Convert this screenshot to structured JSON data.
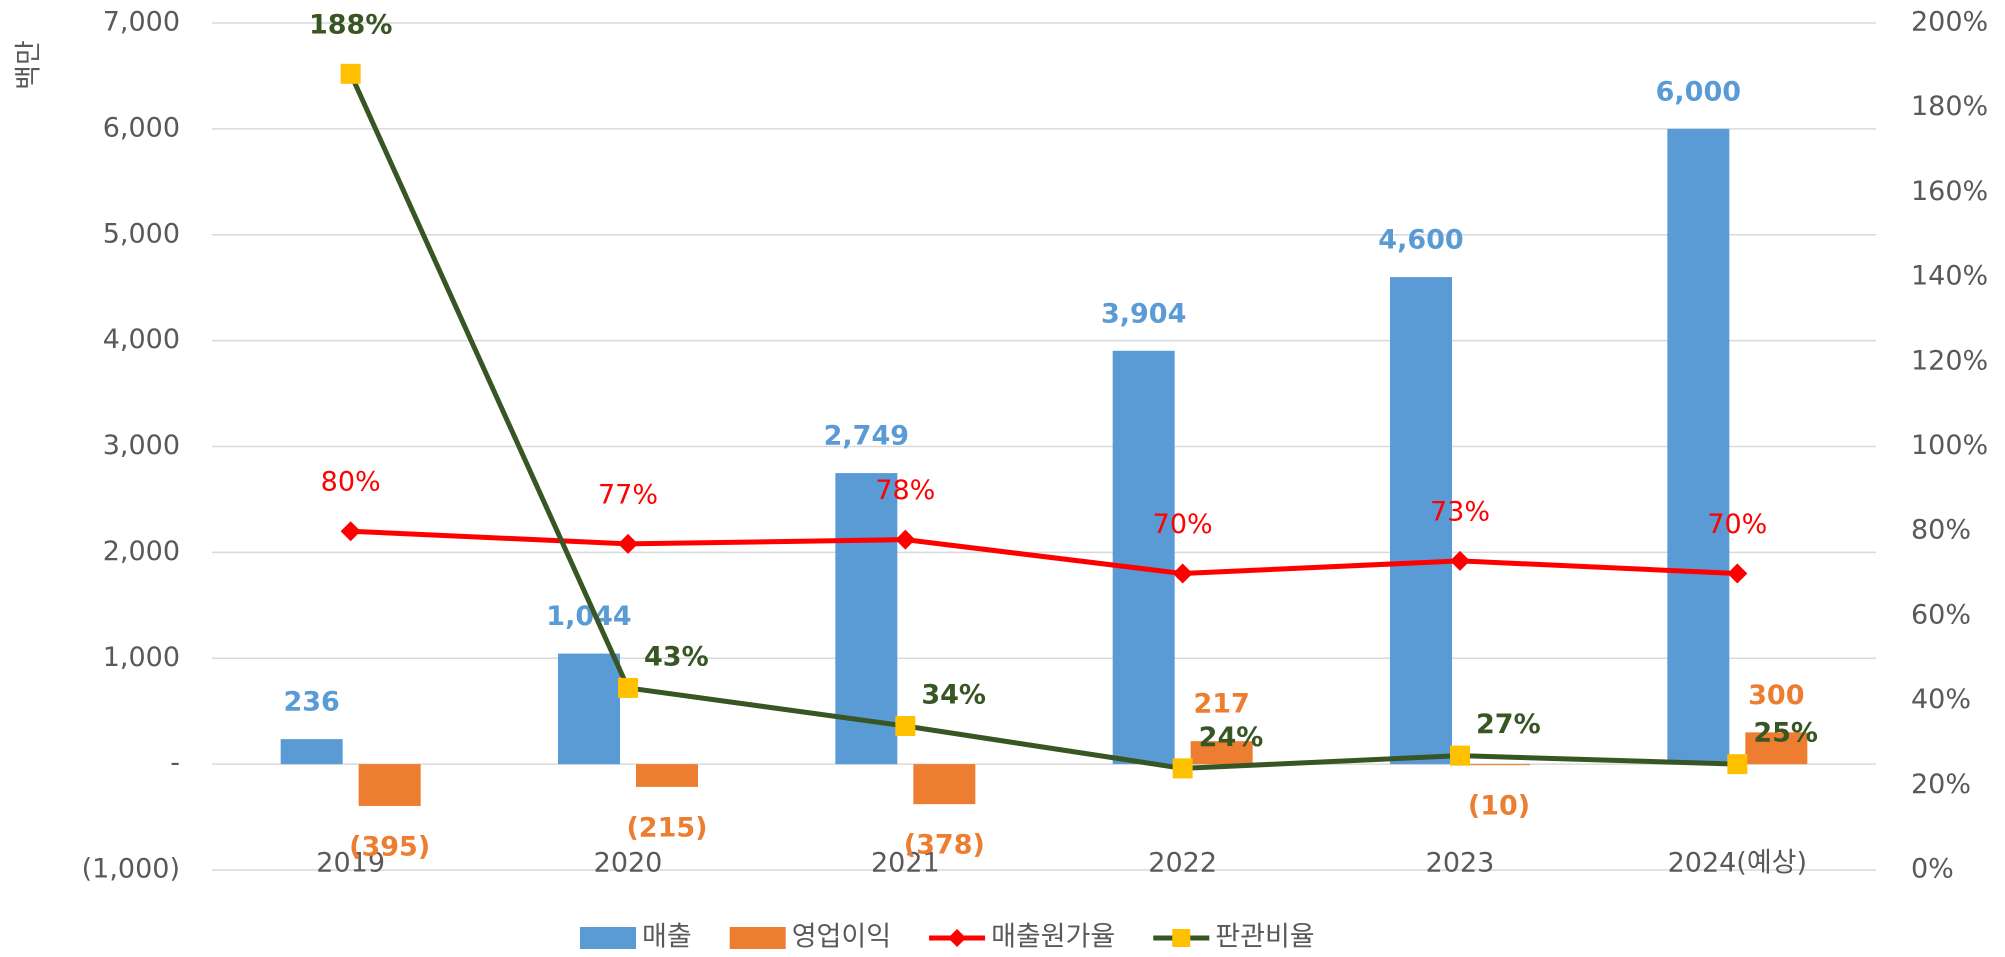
{
  "chart_data": {
    "type": "bar_line_combo",
    "y_axis_label": "백만",
    "categories": [
      "2019",
      "2020",
      "2021",
      "2022",
      "2023",
      "2024(예상)"
    ],
    "series": [
      {
        "name": "매출",
        "type": "bar",
        "color": "#5b9bd5",
        "values": [
          236,
          1044,
          2749,
          3904,
          4600,
          6000
        ],
        "value_labels": [
          "236",
          "1,044",
          "2,749",
          "3,904",
          "4,600",
          "6,000"
        ]
      },
      {
        "name": "영업이익",
        "type": "bar",
        "color": "#ed7d31",
        "values": [
          -395,
          -215,
          -378,
          217,
          -10,
          300
        ],
        "value_labels": [
          "(395)",
          "(215)",
          "(378)",
          "217",
          "(10)",
          "300"
        ]
      },
      {
        "name": "매출원가율",
        "type": "line",
        "axis": "y2",
        "color": "#ff0000",
        "marker_color": "#ff0000",
        "values": [
          80,
          77,
          78,
          70,
          73,
          70
        ],
        "value_labels": [
          "80%",
          "77%",
          "78%",
          "70%",
          "73%",
          "70%"
        ]
      },
      {
        "name": "판관비율",
        "type": "line",
        "axis": "y2",
        "color": "#375623",
        "marker_color": "#ffc000",
        "values": [
          188,
          43,
          34,
          24,
          27,
          25
        ],
        "value_labels": [
          "188%",
          "43%",
          "34%",
          "24%",
          "27%",
          "25%"
        ]
      }
    ],
    "ylim": [
      -1000,
      7000
    ],
    "yticks": [
      {
        "value": -1000,
        "label": "(1,000)"
      },
      {
        "value": 0,
        "label": "-"
      },
      {
        "value": 1000,
        "label": "1,000"
      },
      {
        "value": 2000,
        "label": "2,000"
      },
      {
        "value": 3000,
        "label": "3,000"
      },
      {
        "value": 4000,
        "label": "4,000"
      },
      {
        "value": 5000,
        "label": "5,000"
      },
      {
        "value": 6000,
        "label": "6,000"
      },
      {
        "value": 7000,
        "label": "7,000"
      }
    ],
    "y2lim": [
      0,
      200
    ],
    "y2ticks": [
      {
        "value": 0,
        "label": "0%"
      },
      {
        "value": 20,
        "label": "20%"
      },
      {
        "value": 40,
        "label": "40%"
      },
      {
        "value": 60,
        "label": "60%"
      },
      {
        "value": 80,
        "label": "80%"
      },
      {
        "value": 100,
        "label": "100%"
      },
      {
        "value": 120,
        "label": "120%"
      },
      {
        "value": 140,
        "label": "140%"
      },
      {
        "value": 160,
        "label": "160%"
      },
      {
        "value": 180,
        "label": "180%"
      },
      {
        "value": 200,
        "label": "200%"
      }
    ],
    "grid": true,
    "legend": "bottom"
  }
}
